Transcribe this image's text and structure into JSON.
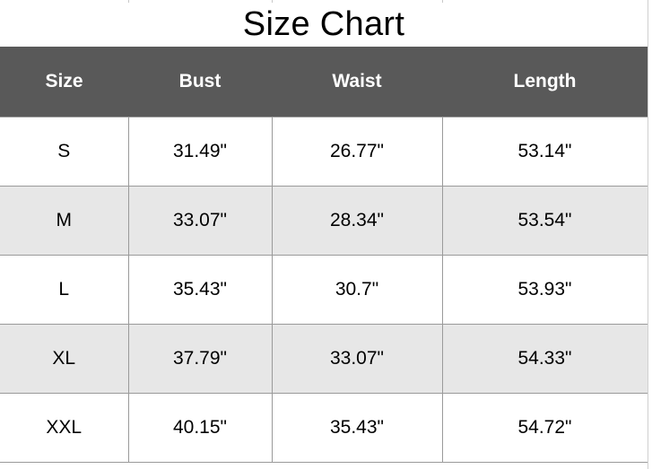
{
  "title": "Size Chart",
  "columns": [
    "Size",
    "Bust",
    "Waist",
    "Length"
  ],
  "rows": [
    {
      "size": "S",
      "bust": "31.49\"",
      "waist": "26.77\"",
      "length": "53.14\""
    },
    {
      "size": "M",
      "bust": "33.07\"",
      "waist": "28.34\"",
      "length": "53.54\""
    },
    {
      "size": "L",
      "bust": "35.43\"",
      "waist": "30.7\"",
      "length": "53.93\""
    },
    {
      "size": "XL",
      "bust": "37.79\"",
      "waist": "33.07\"",
      "length": "54.33\""
    },
    {
      "size": "XXL",
      "bust": "40.15\"",
      "waist": "35.43\"",
      "length": "54.72\""
    }
  ],
  "colors": {
    "header_bg": "#595959",
    "header_text": "#ffffff",
    "shaded_row": "#e7e7e7",
    "plain_row": "#ffffff"
  }
}
